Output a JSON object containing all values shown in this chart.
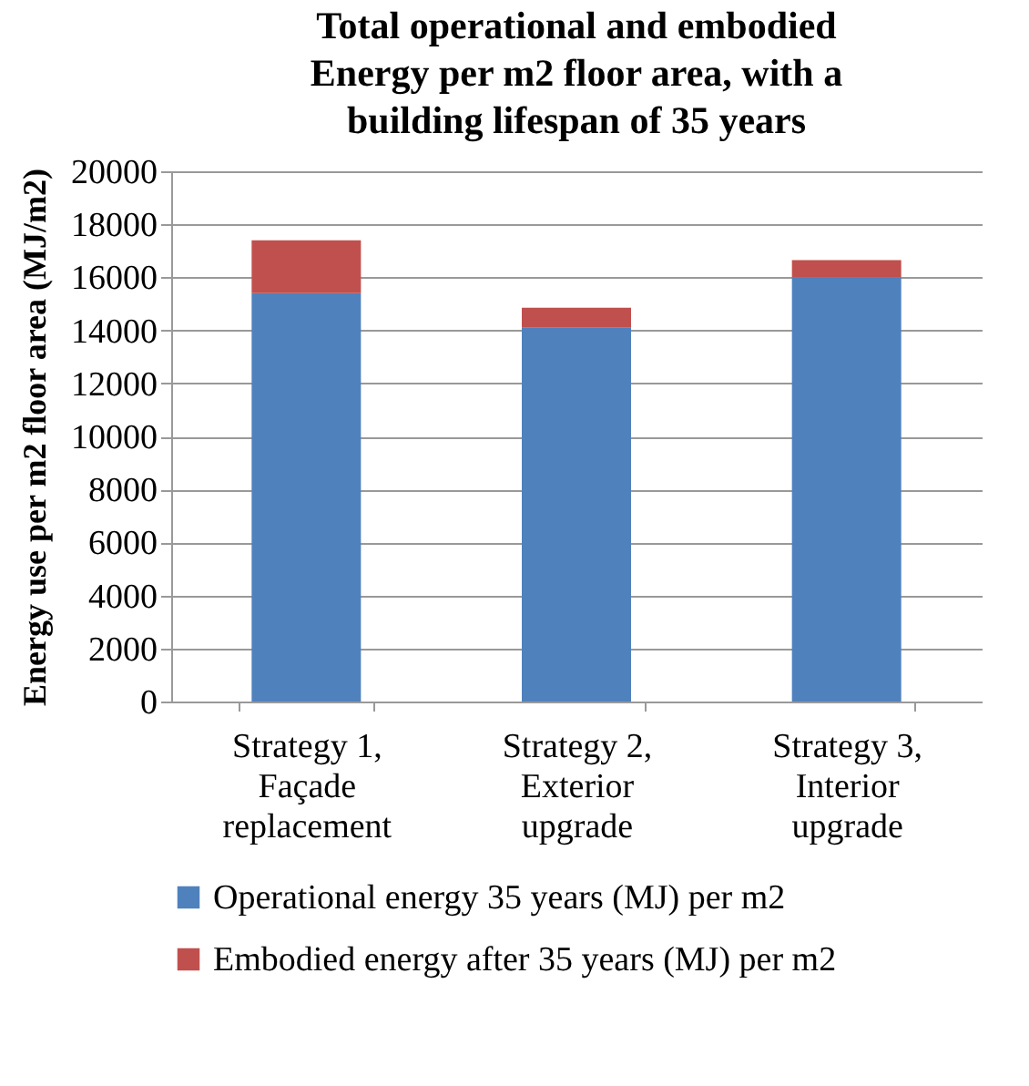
{
  "chart_data": {
    "type": "bar",
    "title": "Total operational and embodied Energy per m2 floor area, with a building lifespan of 35 years",
    "ylabel": "Energy use per m2 floor area (MJ/m2)",
    "categories": [
      "Strategy 1, Façade replacement",
      "Strategy 2, Exterior upgrade",
      "Strategy 3, Interior upgrade"
    ],
    "stacked": true,
    "series": [
      {
        "name": "Operational energy 35 years (MJ) per m2",
        "color": "#4f81bd",
        "values": [
          15400,
          14100,
          16000
        ]
      },
      {
        "name": "Embodied energy after 35 years (MJ) per m2",
        "color": "#c0504d",
        "values": [
          2000,
          750,
          650
        ]
      }
    ],
    "ylim": [
      0,
      20000
    ],
    "yticks": [
      0,
      2000,
      4000,
      6000,
      8000,
      10000,
      12000,
      14000,
      16000,
      18000,
      20000
    ],
    "grid": "y",
    "legend": "bottom"
  }
}
